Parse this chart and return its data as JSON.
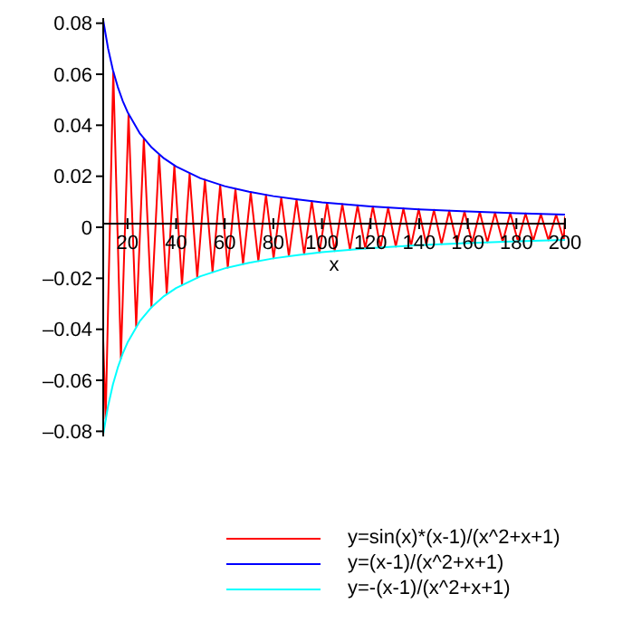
{
  "chart_data": {
    "type": "line",
    "xlabel": "x",
    "xlim": [
      10,
      200
    ],
    "xticks": [
      20,
      40,
      60,
      80,
      100,
      120,
      140,
      160,
      180,
      200
    ],
    "ylim": [
      -0.082,
      0.082
    ],
    "yticks": [
      {
        "value": -0.08,
        "label": "–0.08"
      },
      {
        "value": -0.06,
        "label": "–0.06"
      },
      {
        "value": -0.04,
        "label": "–0.04"
      },
      {
        "value": -0.02,
        "label": "–0.02"
      },
      0,
      0.02,
      0.04,
      0.06,
      0.08
    ],
    "grid": false,
    "legend": "bottom right",
    "marker": "none",
    "line_style": "solid",
    "series": [
      {
        "name": "y=sin(x)*(x-1)/(x^2+x+1)",
        "color": "#ff0000",
        "x": [
          10,
          11.0,
          14.14,
          17.28,
          20.42,
          23.56,
          26.7,
          29.85,
          32.99,
          36.13,
          39.27,
          42.41,
          45.55,
          48.69,
          51.84,
          54.98,
          58.12,
          61.26,
          64.4,
          67.54,
          70.69,
          73.83,
          76.97,
          80.11,
          83.25,
          86.39,
          89.54,
          92.68,
          95.82,
          98.96,
          102.1,
          105.24,
          108.38,
          111.53,
          114.67,
          117.81,
          120.95,
          124.09,
          127.23,
          130.38,
          133.52,
          136.66,
          139.8,
          142.94,
          146.08,
          149.23,
          152.37,
          155.51,
          158.65,
          161.79,
          164.93,
          168.07,
          171.22,
          174.36,
          177.5,
          180.64,
          183.78,
          186.92,
          190.07,
          193.21,
          196.35,
          199.49,
          200
        ],
        "values": [
          -0.0441,
          -0.0752,
          0.0611,
          -0.0514,
          0.0443,
          -0.0389,
          0.0347,
          -0.0313,
          0.0285,
          -0.0262,
          0.0242,
          -0.0225,
          0.021,
          -0.0197,
          0.0186,
          -0.0175,
          0.0166,
          -0.0158,
          0.015,
          -0.0144,
          0.0137,
          -0.0132,
          0.0127,
          -0.0122,
          0.0117,
          -0.0113,
          0.0109,
          -0.0106,
          0.0102,
          -0.0099,
          0.0096,
          -0.0093,
          0.0091,
          -0.0088,
          0.0086,
          -0.0083,
          0.0081,
          -0.0079,
          0.0077,
          -0.0076,
          0.0074,
          -0.0072,
          0.0071,
          -0.0069,
          0.0068,
          -0.0066,
          0.0065,
          -0.0063,
          0.0062,
          -0.0061,
          0.006,
          -0.0059,
          0.0058,
          -0.0057,
          0.0056,
          -0.0055,
          0.0054,
          -0.0053,
          0.0052,
          -0.0051,
          0.005,
          -0.005,
          0.0043
        ]
      },
      {
        "name": "y=(x-1)/(x^2+x+1)",
        "color": "#0000ff",
        "x": [
          10,
          12,
          14,
          16,
          18,
          20,
          25,
          30,
          35,
          40,
          50,
          60,
          70,
          80,
          90,
          100,
          120,
          140,
          160,
          180,
          200
        ],
        "values": [
          0.0811,
          0.0701,
          0.0616,
          0.055,
          0.0496,
          0.0452,
          0.0369,
          0.0312,
          0.027,
          0.0238,
          0.0192,
          0.0161,
          0.0139,
          0.0122,
          0.0109,
          0.0098,
          0.0082,
          0.007,
          0.0062,
          0.0055,
          0.005
        ]
      },
      {
        "name": "y=-(x-1)/(x^2+x+1)",
        "color": "#00ffff",
        "x": [
          10,
          12,
          14,
          16,
          18,
          20,
          25,
          30,
          35,
          40,
          50,
          60,
          70,
          80,
          90,
          100,
          120,
          140,
          160,
          180,
          200
        ],
        "values": [
          -0.0811,
          -0.0701,
          -0.0616,
          -0.055,
          -0.0496,
          -0.0452,
          -0.0369,
          -0.0312,
          -0.027,
          -0.0238,
          -0.0192,
          -0.0161,
          -0.0139,
          -0.0122,
          -0.0109,
          -0.0098,
          -0.0082,
          -0.007,
          -0.0062,
          -0.0055,
          -0.005
        ]
      }
    ]
  }
}
